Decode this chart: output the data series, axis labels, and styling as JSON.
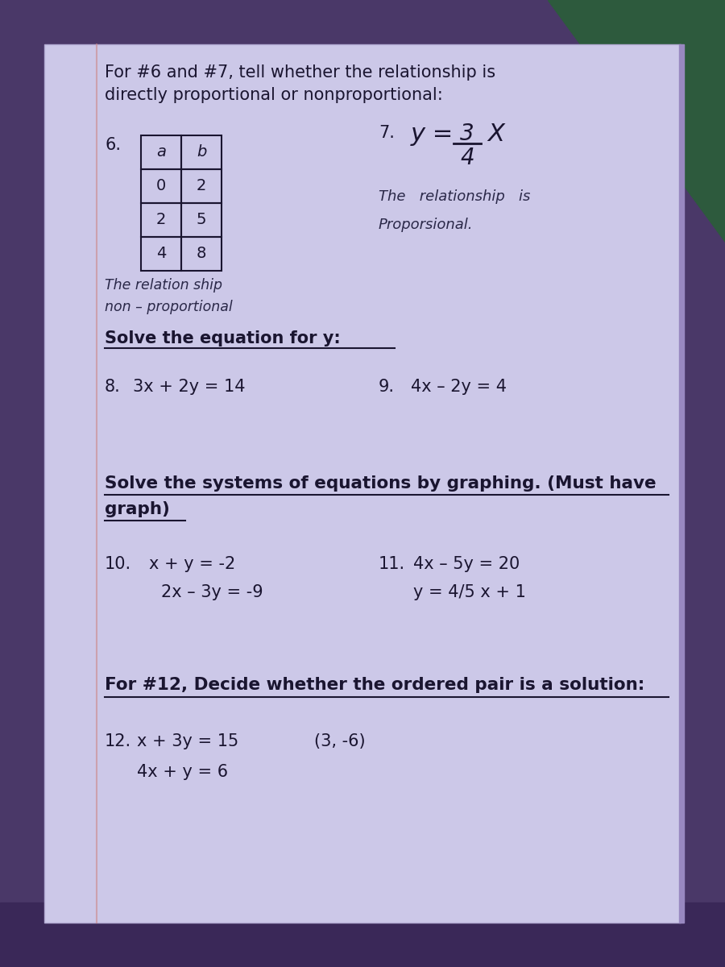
{
  "bg_top_color": "#4a3060",
  "bg_bottom_color": "#7a6090",
  "paper_color": "#c8c2e0",
  "paper_shadow": "#a090c0",
  "text_color": "#1a1530",
  "title_line1": "For #6 and #7, tell whether the relationship is",
  "title_line2": "directly proportional or nonproportional:",
  "table_headers": [
    "a",
    "b"
  ],
  "table_data": [
    [
      "0",
      "2"
    ],
    [
      "2",
      "5"
    ],
    [
      "4",
      "8"
    ]
  ],
  "hw6_line1": "The relation ship",
  "hw6_line2": "non – proportional",
  "eq7_y": "y =",
  "eq7_num": "3",
  "eq7_den": "4",
  "eq7_x": "X",
  "hw7_line1": "The   relationship   is",
  "hw7_line2": "Proporsional.",
  "solve_header": "Solve the equation for y:",
  "eq8_num": "8.",
  "eq8": "3x + 2y = 14",
  "eq9_num": "9.",
  "eq9": "4x – 2y = 4",
  "systems_header_line1": "Solve the systems of equations by graphing. (Must have",
  "systems_header_line2": "graph)",
  "eq10_num": "10.",
  "eq10_line1": "x + y = -2",
  "eq10_line2": "2x – 3y = -9",
  "eq11_num": "11.",
  "eq11_line1": "4x – 5y = 20",
  "eq11_line2": "y = 4/5 x + 1",
  "decide_header": "For #12, Decide whether the ordered pair is a solution:",
  "eq12_num": "12.",
  "eq12_line1": "x + 3y = 15",
  "eq12_pair": "(3, -6)",
  "eq12_line2": "4x + y = 6"
}
